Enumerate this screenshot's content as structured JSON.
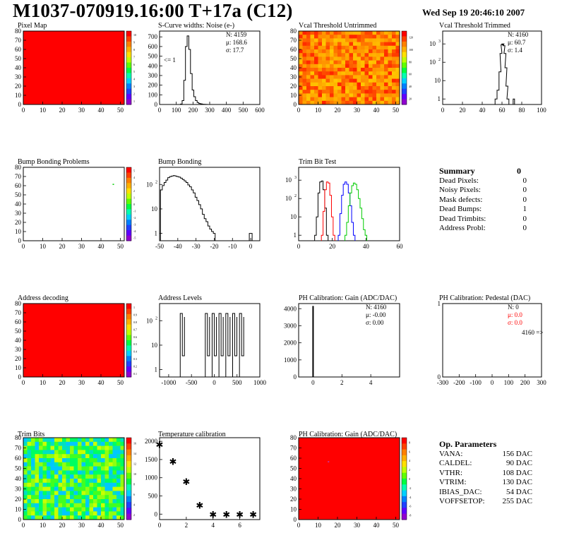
{
  "header": {
    "title": "M1037-070919.16:00 T+17a (C12)",
    "date": "Wed Sep 19 20:46:10 2007"
  },
  "colors": {
    "red": "#ff0000",
    "black": "#000000",
    "blue": "#0000ff",
    "green": "#00cc00"
  },
  "summary": {
    "title": "Summary",
    "total": "0",
    "rows": [
      {
        "label": "Dead Pixels:",
        "value": "0"
      },
      {
        "label": "Noisy Pixels:",
        "value": "0"
      },
      {
        "label": "Mask defects:",
        "value": "0"
      },
      {
        "label": "Dead Bumps:",
        "value": "1"
      },
      {
        "label": "Dead Trimbits:",
        "value": "0"
      },
      {
        "label": "Address Probl:",
        "value": "0"
      }
    ]
  },
  "op_params": {
    "title": "Op. Parameters",
    "rows": [
      {
        "label": "VANA:",
        "value": "156 DAC"
      },
      {
        "label": "CALDEL:",
        "value": "90 DAC"
      },
      {
        "label": "VTHR:",
        "value": "108 DAC"
      },
      {
        "label": "VTRIM:",
        "value": "130 DAC"
      },
      {
        "label": "IBIAS_DAC:",
        "value": "54 DAC"
      },
      {
        "label": "VOFFSETOP:",
        "value": "255 DAC"
      }
    ]
  },
  "chart_data": [
    {
      "type": "heatmap",
      "title": "Pixel Map",
      "xlim": [
        0,
        52
      ],
      "ylim": [
        0,
        80
      ],
      "xticks": [
        "0",
        "10",
        "20",
        "30",
        "40",
        "50"
      ],
      "yticks": [
        "0",
        "10",
        "20",
        "30",
        "40",
        "50",
        "60",
        "70",
        "80"
      ],
      "fill": "uniform",
      "colorbar_ticks": [
        "1",
        "2",
        "3",
        "4",
        "5",
        "6",
        "7",
        "8",
        "9",
        "10"
      ]
    },
    {
      "type": "bar",
      "title": "S-Curve widths: Noise (e-)",
      "xlim": [
        0,
        600
      ],
      "xticks": [
        "0",
        "100",
        "200",
        "300",
        "400",
        "500",
        "600"
      ],
      "yticks": [
        "0",
        "100",
        "200",
        "300",
        "400",
        "500",
        "600",
        "700"
      ],
      "ylim": [
        0,
        760
      ],
      "x": [
        130,
        140,
        150,
        160,
        170,
        180,
        190,
        200,
        210,
        220,
        230,
        240,
        250,
        260,
        270,
        280
      ],
      "values": [
        5,
        40,
        250,
        600,
        710,
        570,
        320,
        150,
        80,
        40,
        20,
        10,
        6,
        3,
        2,
        1
      ],
      "stats": {
        "N": "N: 4159",
        "mu": "μ: 168.6",
        "sigma": "σ: 17.7"
      },
      "annotation": "<= 1"
    },
    {
      "type": "heatmap",
      "title": "Vcal Threshold Untrimmed",
      "xlim": [
        0,
        52
      ],
      "ylim": [
        0,
        80
      ],
      "xticks": [
        "0",
        "10",
        "20",
        "30",
        "40",
        "50"
      ],
      "yticks": [
        "0",
        "10",
        "20",
        "30",
        "40",
        "50",
        "60",
        "70",
        "80"
      ],
      "fill": "noisy-warm",
      "colorbar_ticks": [
        "20",
        "40",
        "60",
        "80",
        "100",
        "120"
      ]
    },
    {
      "type": "bar",
      "title": "Vcal Threshold Trimmed",
      "log_y": true,
      "xlim": [
        0,
        100
      ],
      "xticks": [
        "0",
        "20",
        "40",
        "60",
        "80",
        "100"
      ],
      "yticks": [
        "1",
        "10",
        "10²",
        "10³"
      ],
      "x": [
        54,
        56,
        58,
        59,
        60,
        61,
        62,
        63,
        64,
        65,
        66,
        72
      ],
      "values": [
        1,
        3,
        30,
        300,
        900,
        1000,
        800,
        300,
        50,
        5,
        1,
        1
      ],
      "stats": {
        "N": "N: 4160",
        "mu": "μ: 60.7",
        "sigma": "σ:  1.4"
      }
    },
    {
      "type": "heatmap",
      "title": "Bump Bonding Problems",
      "xlim": [
        0,
        52
      ],
      "ylim": [
        0,
        80
      ],
      "xticks": [
        "0",
        "10",
        "20",
        "30",
        "40",
        "50"
      ],
      "yticks": [
        "0",
        "10",
        "20",
        "30",
        "40",
        "50",
        "60",
        "70",
        "80"
      ],
      "fill": "empty",
      "points": [
        [
          46,
          62
        ]
      ],
      "colorbar_ticks": [
        "-5",
        "-4",
        "-3",
        "-2",
        "-1",
        "0",
        "1",
        "2",
        "3",
        "4",
        "5"
      ]
    },
    {
      "type": "bar",
      "title": "Bump Bonding",
      "log_y": true,
      "xlim": [
        -50,
        5
      ],
      "xticks": [
        "-50",
        "-40",
        "-30",
        "-20",
        "-10",
        "0"
      ],
      "yticks": [
        "1",
        "10",
        "10²"
      ],
      "x": [
        -49,
        -48,
        -47,
        -46,
        -45,
        -44,
        -43,
        -42,
        -41,
        -40,
        -39,
        -38,
        -37,
        -36,
        -35,
        -34,
        -33,
        -32,
        -31,
        -30,
        -29,
        -28,
        -27,
        -26,
        -25,
        -24,
        -23,
        -22,
        -21,
        -20,
        -19,
        0
      ],
      "values": [
        60,
        90,
        120,
        150,
        190,
        210,
        220,
        230,
        220,
        210,
        200,
        180,
        160,
        140,
        120,
        95,
        80,
        60,
        45,
        30,
        22,
        15,
        10,
        6,
        4,
        3,
        2,
        1.5,
        1.2,
        1,
        0,
        1
      ]
    },
    {
      "type": "bar",
      "title": "Trim Bit Test",
      "log_y": true,
      "xlim": [
        0,
        60
      ],
      "xticks": [
        "0",
        "20",
        "40",
        "60"
      ],
      "yticks": [
        "1",
        "10",
        "10²",
        "10³"
      ],
      "series": [
        {
          "color": "black",
          "x": [
            10,
            11,
            12,
            13,
            14,
            15,
            16,
            17
          ],
          "values": [
            1,
            10,
            200,
            800,
            900,
            300,
            30,
            1
          ]
        },
        {
          "color": "red",
          "x": [
            14,
            15,
            16,
            17,
            18,
            19,
            20,
            21
          ],
          "values": [
            1,
            20,
            300,
            800,
            700,
            150,
            10,
            1
          ]
        },
        {
          "color": "blue",
          "x": [
            24,
            25,
            26,
            27,
            28,
            29,
            30,
            31,
            32,
            33
          ],
          "values": [
            1,
            15,
            150,
            600,
            800,
            600,
            200,
            40,
            5,
            1
          ]
        },
        {
          "color": "green",
          "x": [
            28,
            29,
            30,
            31,
            32,
            33,
            34,
            35,
            36,
            37,
            38,
            39,
            40
          ],
          "values": [
            1,
            5,
            40,
            200,
            500,
            700,
            600,
            300,
            100,
            30,
            8,
            2,
            1
          ]
        }
      ]
    },
    {
      "type": "heatmap",
      "title": "Address decoding",
      "xlim": [
        0,
        52
      ],
      "ylim": [
        0,
        80
      ],
      "xticks": [
        "0",
        "10",
        "20",
        "30",
        "40",
        "50"
      ],
      "yticks": [
        "0",
        "10",
        "20",
        "30",
        "40",
        "50",
        "60",
        "70",
        "80"
      ],
      "fill": "uniform",
      "colorbar_ticks": [
        "0.1",
        "0.2",
        "0.3",
        "0.4",
        "0.5",
        "0.6",
        "0.7",
        "0.8",
        "0.9",
        "1"
      ]
    },
    {
      "type": "bar",
      "title": "Address Levels",
      "log_y": true,
      "xlim": [
        -1200,
        1000
      ],
      "xticks": [
        "-1000",
        "-500",
        "0",
        "500",
        "1000"
      ],
      "yticks": [
        "1",
        "10",
        "10²"
      ],
      "peaks": [
        -700,
        -150,
        0,
        150,
        300,
        450,
        600
      ]
    },
    {
      "type": "bar",
      "title": "PH Calibration: Gain (ADC/DAC)",
      "xlim": [
        -1,
        6
      ],
      "xticks": [
        "0",
        "2",
        "4"
      ],
      "yticks": [
        "0",
        "1000",
        "2000",
        "3000",
        "4000"
      ],
      "ylim": [
        0,
        4300
      ],
      "peak_x": 0,
      "peak_value": 4160,
      "stats": {
        "N": "N: 4160",
        "mu": "μ: -0.00",
        "sigma": "σ: 0.00"
      }
    },
    {
      "type": "bar",
      "title": "PH Calibration: Pedestal (DAC)",
      "xlim": [
        -300,
        300
      ],
      "xticks": [
        "-300",
        "-200",
        "-100",
        "0",
        "100",
        "200",
        "300"
      ],
      "yticks": [
        "0",
        "1"
      ],
      "stats": {
        "N": "N:    0",
        "mu": "μ:  0.0",
        "sigma": "σ:  0.0"
      },
      "annotation": "4160 =>"
    },
    {
      "type": "heatmap",
      "title": "Trim Bits",
      "xlim": [
        0,
        52
      ],
      "ylim": [
        0,
        80
      ],
      "xticks": [
        "0",
        "10",
        "20",
        "30",
        "40",
        "50"
      ],
      "yticks": [
        "0",
        "10",
        "20",
        "30",
        "40",
        "50",
        "60",
        "70",
        "80"
      ],
      "fill": "noisy-cool",
      "colorbar_ticks": [
        "2",
        "4",
        "6",
        "8",
        "10",
        "12",
        "14",
        "16"
      ]
    },
    {
      "type": "scatter",
      "title": "Temperature calibration",
      "xlim": [
        0,
        7.5
      ],
      "ylim": [
        -150,
        2100
      ],
      "xticks": [
        "0",
        "2",
        "4",
        "6"
      ],
      "yticks": [
        "0",
        "500",
        "1000",
        "1500",
        "2000"
      ],
      "x": [
        0,
        1,
        2,
        3,
        4,
        5,
        6,
        7
      ],
      "values": [
        1920,
        1450,
        900,
        250,
        0,
        0,
        0,
        0
      ]
    },
    {
      "type": "heatmap",
      "title": "PH Calibration: Gain (ADC/DAC)",
      "xlim": [
        0,
        52
      ],
      "ylim": [
        0,
        80
      ],
      "xticks": [
        "0",
        "10",
        "20",
        "30",
        "40",
        "50"
      ],
      "yticks": [
        "0",
        "10",
        "20",
        "30",
        "40",
        "50",
        "60",
        "70",
        "80"
      ],
      "fill": "uniform",
      "points": [
        [
          15,
          57
        ]
      ],
      "colorbar_ticks": [
        "-8",
        "-6",
        "-4",
        "-2",
        "0",
        "2",
        "4",
        "6",
        "8"
      ]
    }
  ]
}
